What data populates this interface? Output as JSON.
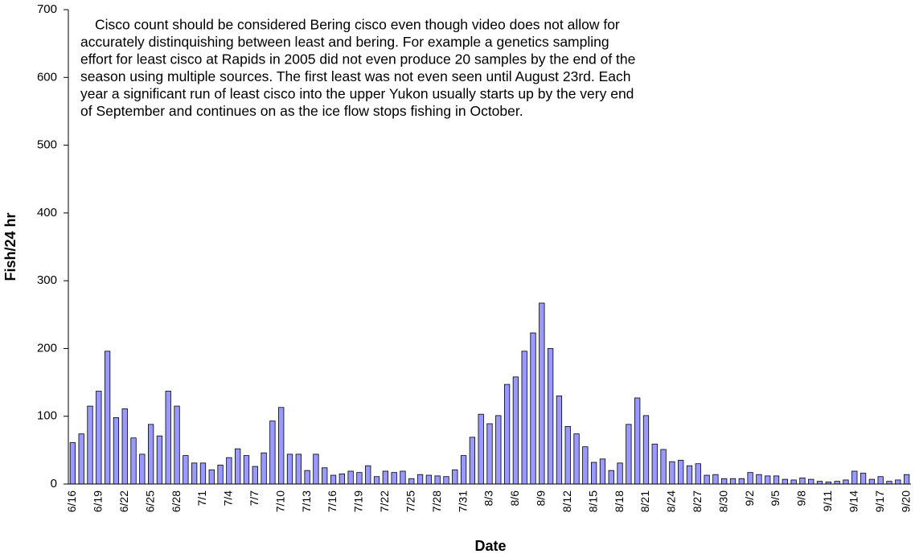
{
  "chart_data": {
    "type": "bar",
    "y_label": "Fish/24 hr",
    "x_label": "Date",
    "annotation": [
      "Cisco count should be considered Bering cisco even though video does not allow for",
      "accurately distinquishing between least and bering. For example a genetics sampling",
      "effort for least cisco at Rapids in 2005 did not even produce 20 samples by the end of the",
      "season using multiple sources. The first least was not even seen until August 23rd. Each",
      "year a significant run of least cisco into the upper Yukon usually starts up by the very end",
      "of September and continues on as the ice flow stops fishing in October."
    ],
    "categories": [
      "6/16",
      null,
      null,
      "6/19",
      null,
      null,
      "6/22",
      null,
      null,
      "6/25",
      null,
      null,
      "6/28",
      null,
      null,
      "7/1",
      null,
      null,
      "7/4",
      null,
      null,
      "7/7",
      null,
      null,
      "7/10",
      null,
      null,
      "7/13",
      null,
      null,
      "7/16",
      null,
      null,
      "7/19",
      null,
      null,
      "7/22",
      null,
      null,
      "7/25",
      null,
      null,
      "7/28",
      null,
      null,
      "7/31",
      null,
      null,
      "8/3",
      null,
      null,
      "8/6",
      null,
      null,
      "8/9",
      null,
      null,
      "8/12",
      null,
      null,
      "8/15",
      null,
      null,
      "8/18",
      null,
      null,
      "8/21",
      null,
      null,
      "8/24",
      null,
      null,
      "8/27",
      null,
      null,
      "8/30",
      null,
      null,
      "9/2",
      null,
      null,
      "9/5",
      null,
      null,
      "9/8",
      null,
      null,
      "9/11",
      null,
      null,
      "9/14",
      null,
      null,
      "9/17",
      null,
      null,
      "9/20"
    ],
    "values": [
      61,
      74,
      115,
      137,
      196,
      98,
      111,
      68,
      44,
      88,
      71,
      137,
      115,
      42,
      31,
      31,
      21,
      28,
      39,
      52,
      42,
      26,
      46,
      93,
      113,
      44,
      44,
      20,
      44,
      24,
      13,
      15,
      19,
      17,
      27,
      11,
      19,
      17,
      19,
      8,
      14,
      13,
      12,
      11,
      21,
      42,
      69,
      103,
      89,
      101,
      147,
      158,
      196,
      223,
      267,
      200,
      130,
      85,
      74,
      55,
      32,
      37,
      20,
      31,
      88,
      127,
      101,
      59,
      51,
      33,
      35,
      27,
      30,
      13,
      14,
      8,
      8,
      8,
      17,
      14,
      12,
      12,
      7,
      6,
      9,
      7,
      4,
      3,
      4,
      6,
      19,
      16,
      7,
      11,
      4,
      6,
      14
    ],
    "color": "#9999ff",
    "ylim": [
      0,
      700
    ],
    "yticks": [
      0,
      100,
      200,
      300,
      400,
      500,
      600,
      700
    ]
  }
}
